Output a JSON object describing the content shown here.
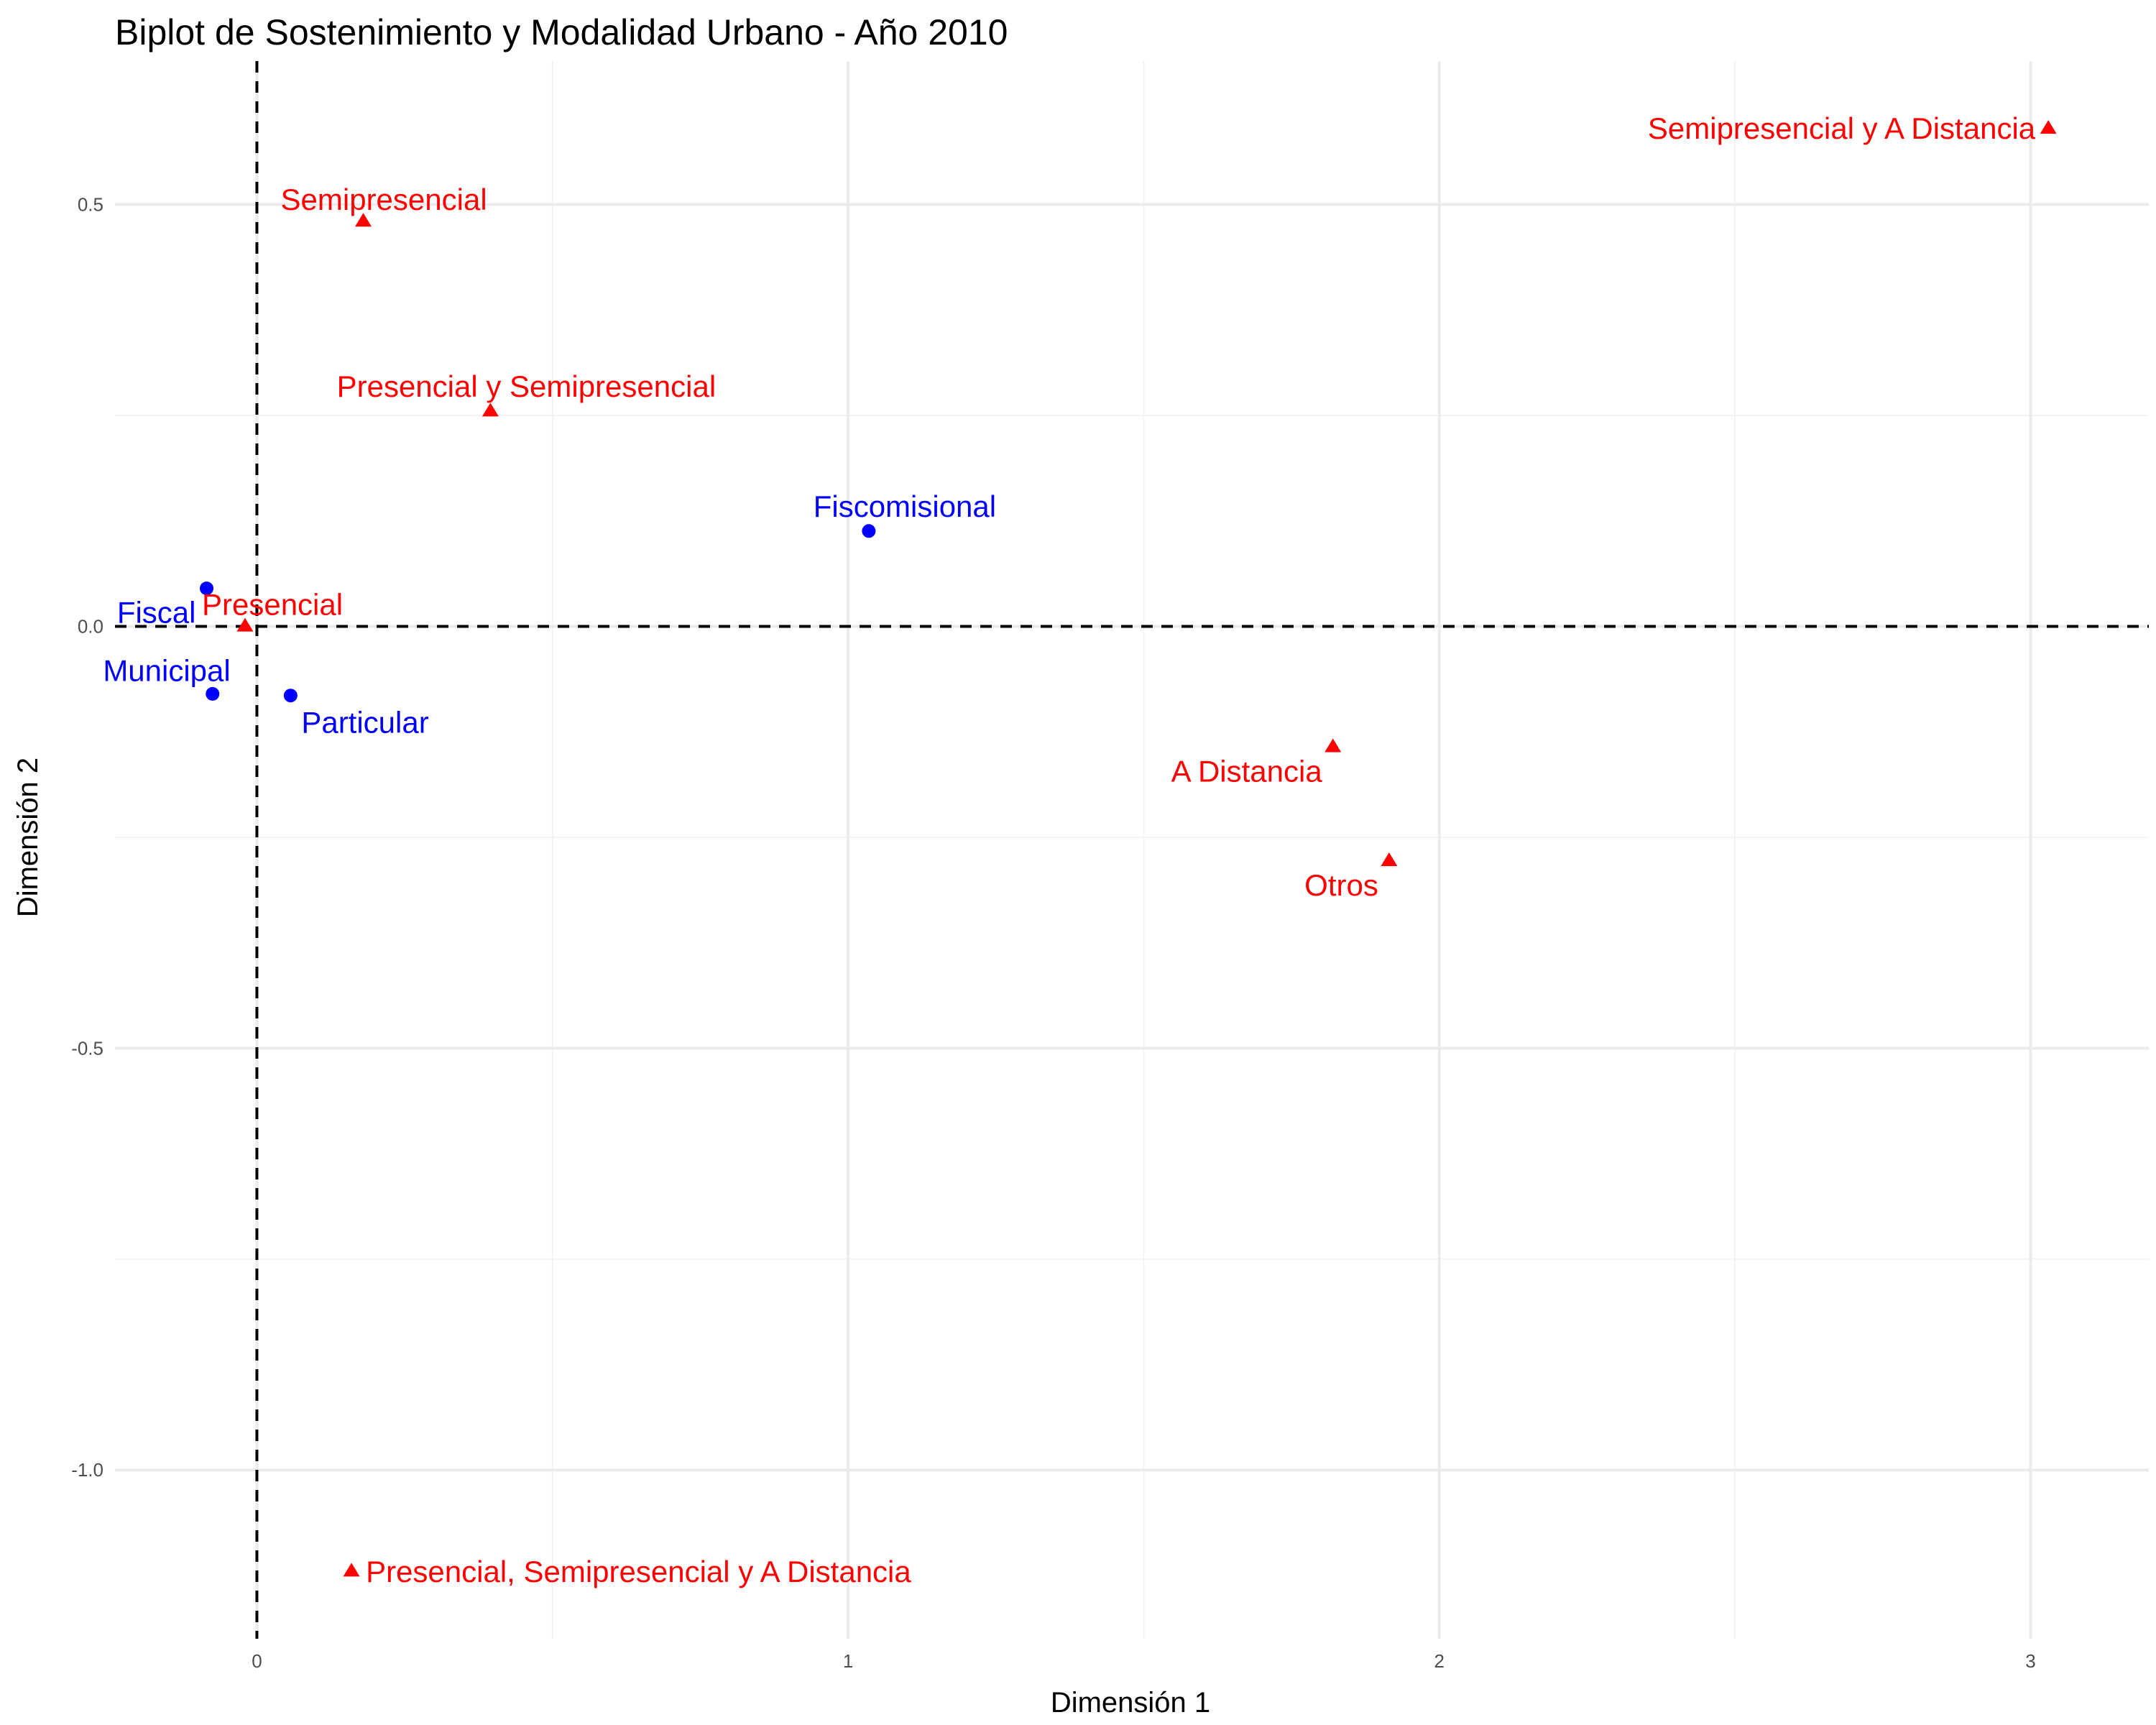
{
  "chart_data": {
    "type": "scatter",
    "title": "Biplot de Sostenimiento y Modalidad Urbano - Año 2010",
    "xlabel": "Dimensión 1",
    "ylabel": "Dimensión 2",
    "xlim": [
      -0.24,
      3.2
    ],
    "ylim": [
      -1.2,
      0.67
    ],
    "x_ticks": [
      0,
      1,
      2,
      3
    ],
    "x_tick_labels": [
      "0",
      "1",
      "2",
      "3"
    ],
    "y_ticks": [
      -1.0,
      -0.5,
      0.0,
      0.5
    ],
    "y_tick_labels": [
      "-1.0",
      "-0.5",
      "0.0",
      "0.5"
    ],
    "grid": true,
    "reference_lines": {
      "x": 0,
      "y": 0,
      "style": "dashed"
    },
    "series": [
      {
        "color": "#0000ff",
        "marker": "circle",
        "points": [
          {
            "label": "Fiscal",
            "x": -0.085,
            "y": 0.045,
            "label_pos": "below-left"
          },
          {
            "label": "Municipal",
            "x": -0.075,
            "y": -0.08,
            "label_pos": "above-left"
          },
          {
            "label": "Particular",
            "x": 0.057,
            "y": -0.082,
            "label_pos": "below-right"
          },
          {
            "label": "Fiscomisional",
            "x": 1.035,
            "y": 0.113,
            "label_pos": "above"
          }
        ]
      },
      {
        "color": "#ff0000",
        "marker": "triangle",
        "points": [
          {
            "label": "Presencial",
            "x": -0.02,
            "y": 0.0,
            "label_pos": "above-right"
          },
          {
            "label": "Semipresencial",
            "x": 0.18,
            "y": 0.48,
            "label_pos": "above-right"
          },
          {
            "label": "Presencial y Semipresencial",
            "x": 0.395,
            "y": 0.255,
            "label_pos": "above"
          },
          {
            "label": "A Distancia",
            "x": 1.82,
            "y": -0.143,
            "label_pos": "below-left"
          },
          {
            "label": "Otros",
            "x": 1.915,
            "y": -0.278,
            "label_pos": "below-left"
          },
          {
            "label": "Semipresencial y A Distancia",
            "x": 3.03,
            "y": 0.59,
            "label_pos": "left"
          },
          {
            "label": "Presencial, Semipresencial y A Distancia",
            "x": 0.16,
            "y": -1.12,
            "label_pos": "right"
          }
        ]
      }
    ]
  }
}
